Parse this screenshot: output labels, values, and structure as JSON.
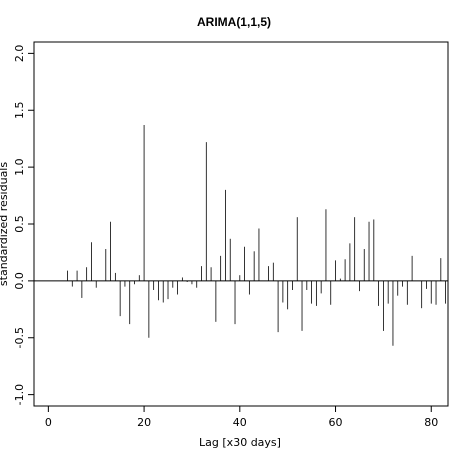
{
  "chart_data": {
    "type": "bar",
    "title": "ARIMA(1,1,5)",
    "xlabel": "Lag [x30 days]",
    "ylabel": "standardized residuals",
    "xlim": [
      -3,
      83.5
    ],
    "ylim": [
      -1.1,
      2.1
    ],
    "xticks": [
      0,
      20,
      40,
      60,
      80
    ],
    "yticks": [
      -1.0,
      -0.5,
      0.0,
      0.5,
      1.0,
      1.5,
      2.0
    ],
    "ytick_labels": [
      "-1.0",
      "-0.5",
      "0.0",
      "0.5",
      "1.0",
      "1.5",
      "2.0"
    ],
    "baseline": 0,
    "lags": [
      4,
      5,
      6,
      7,
      8,
      9,
      10,
      11,
      12,
      13,
      14,
      15,
      16,
      17,
      18,
      19,
      20,
      21,
      22,
      23,
      24,
      25,
      26,
      27,
      28,
      29,
      30,
      31,
      32,
      33,
      34,
      35,
      36,
      37,
      38,
      39,
      40,
      41,
      42,
      43,
      44,
      45,
      46,
      47,
      48,
      49,
      50,
      51,
      52,
      53,
      54,
      55,
      56,
      57,
      58,
      59,
      60,
      61,
      62,
      63,
      64,
      65,
      66,
      67,
      68,
      69,
      70,
      71,
      72,
      73,
      74,
      75,
      76,
      77,
      78,
      79,
      80,
      81,
      82,
      83
    ],
    "values": [
      0.09,
      -0.05,
      0.09,
      -0.15,
      0.12,
      0.34,
      -0.06,
      0.0,
      0.28,
      0.52,
      0.07,
      -0.31,
      -0.05,
      -0.38,
      -0.03,
      0.05,
      1.37,
      -0.5,
      -0.08,
      -0.17,
      -0.19,
      -0.16,
      -0.06,
      -0.12,
      0.03,
      -0.01,
      -0.03,
      -0.06,
      0.13,
      1.22,
      0.12,
      -0.36,
      0.22,
      0.8,
      0.37,
      -0.38,
      0.05,
      0.3,
      -0.12,
      0.26,
      0.46,
      0.0,
      0.13,
      0.16,
      -0.45,
      -0.19,
      -0.25,
      -0.08,
      0.56,
      -0.44,
      -0.08,
      -0.2,
      -0.22,
      -0.11,
      0.63,
      -0.21,
      0.18,
      0.02,
      0.19,
      0.33,
      0.56,
      -0.09,
      0.28,
      0.52,
      0.54,
      -0.22,
      -0.44,
      -0.2,
      -0.57,
      -0.13,
      -0.05,
      -0.21,
      0.22,
      0.0,
      -0.24,
      -0.07,
      -0.2,
      -0.21,
      0.2,
      -0.2
    ]
  }
}
